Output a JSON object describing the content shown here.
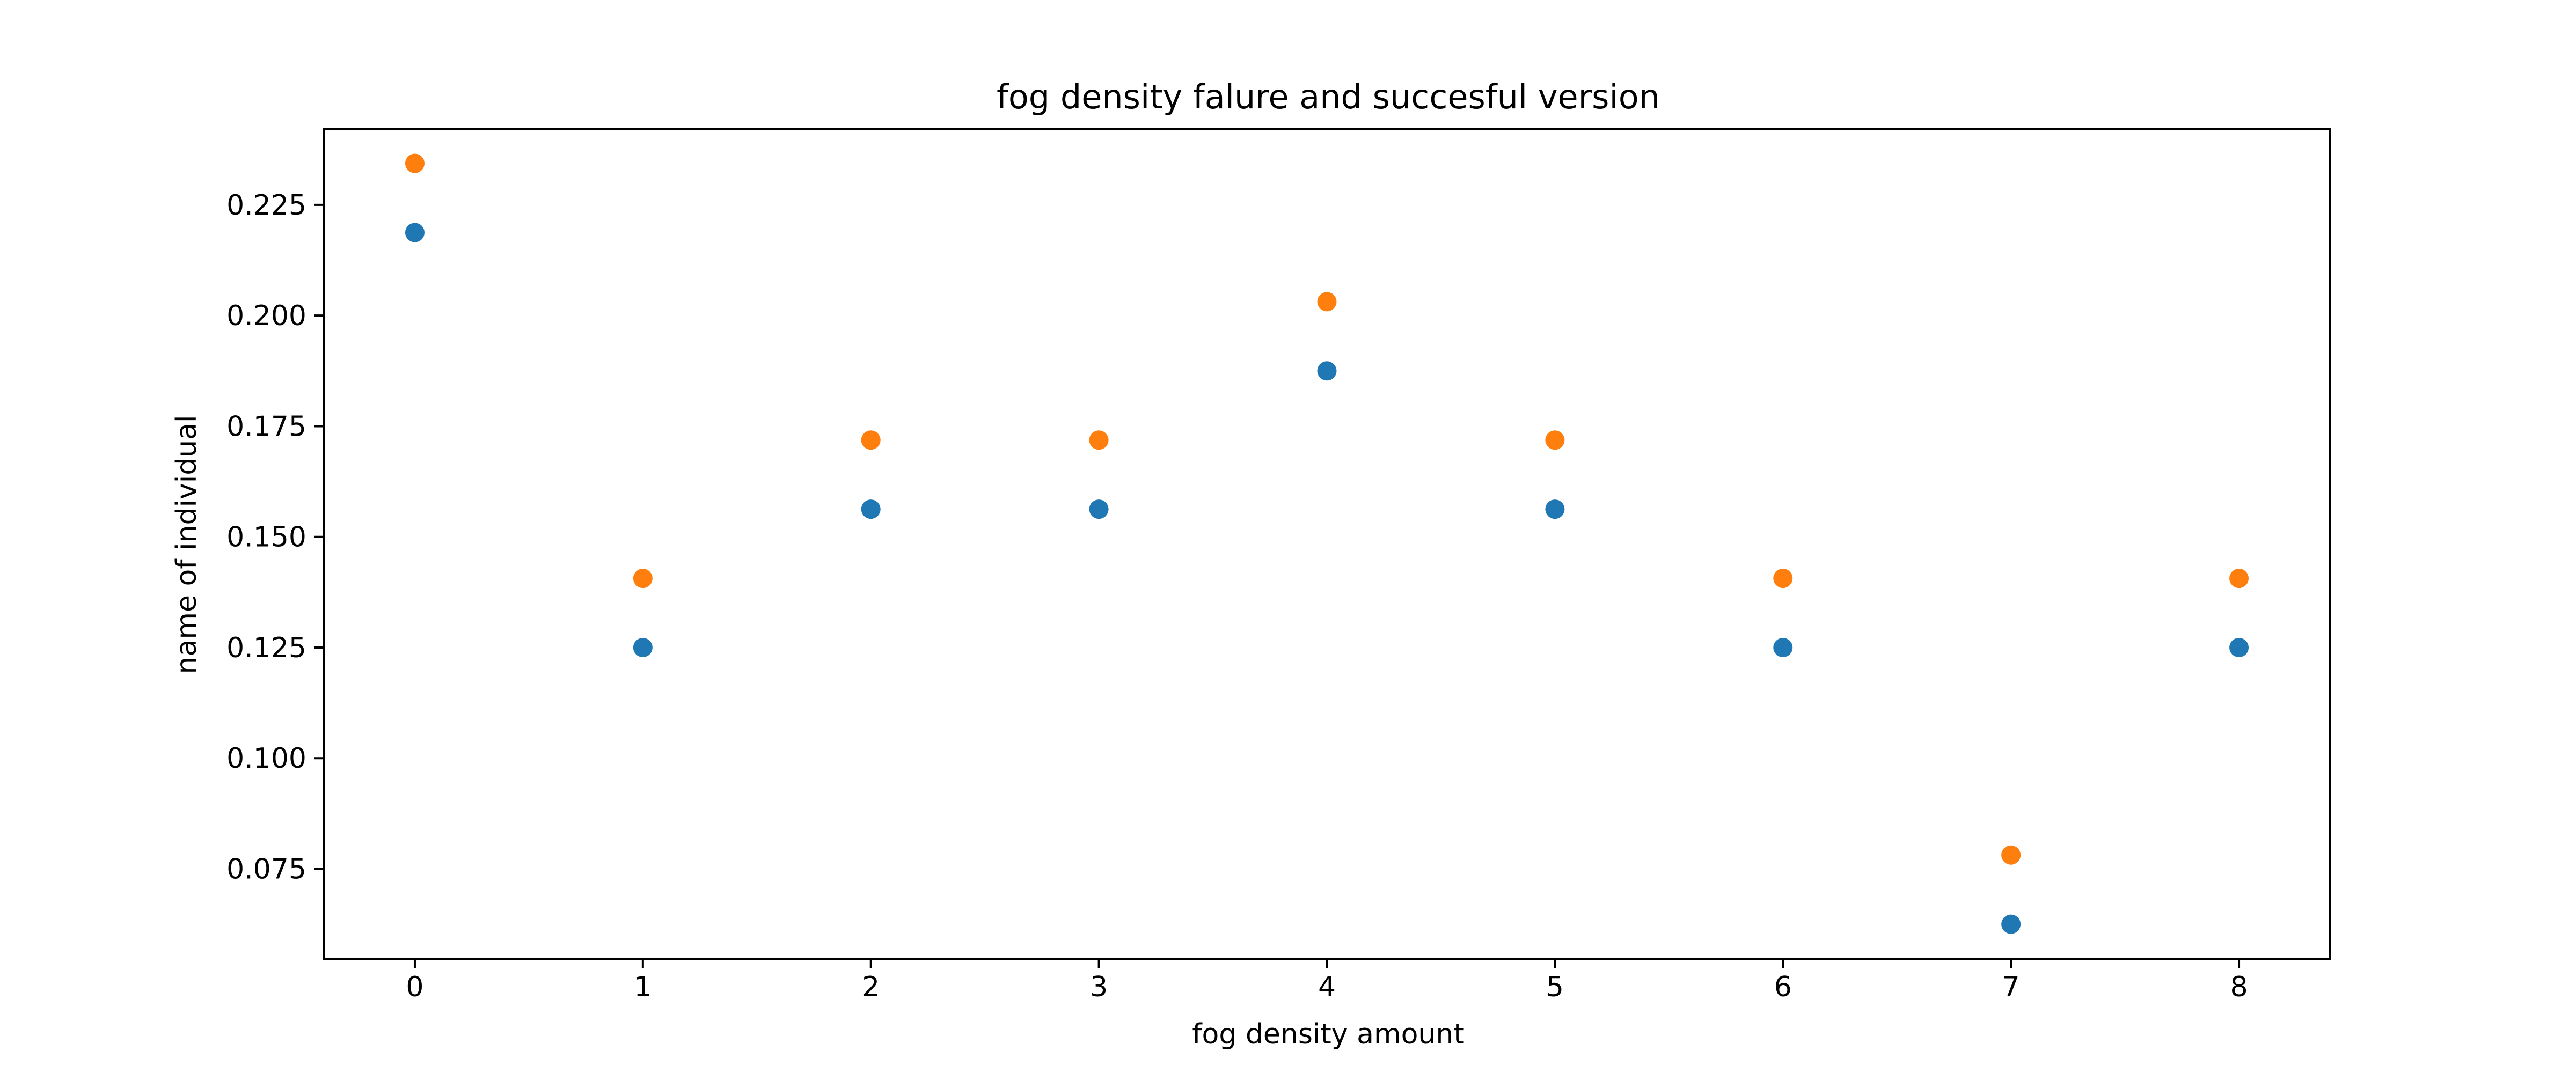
{
  "chart_data": {
    "type": "scatter",
    "title": "fog density falure and succesful version",
    "xlabel": "fog density amount",
    "ylabel": "name of individual",
    "x": [
      0,
      1,
      2,
      3,
      4,
      5,
      6,
      7,
      8
    ],
    "x_ticks": [
      "0",
      "1",
      "2",
      "3",
      "4",
      "5",
      "6",
      "7",
      "8"
    ],
    "y_ticks": [
      "0.075",
      "0.100",
      "0.125",
      "0.150",
      "0.175",
      "0.200",
      "0.225"
    ],
    "xlim": [
      -0.4,
      8.4
    ],
    "ylim": [
      0.0547,
      0.2422
    ],
    "grid": false,
    "series": [
      {
        "color": "#1f77b4",
        "values": [
          0.21875,
          0.125,
          0.15625,
          0.15625,
          0.1875,
          0.15625,
          0.125,
          0.0625,
          0.125
        ]
      },
      {
        "color": "#ff7f0e",
        "values": [
          0.234375,
          0.140625,
          0.171875,
          0.171875,
          0.203125,
          0.171875,
          0.140625,
          0.078125,
          0.140625
        ]
      }
    ]
  }
}
